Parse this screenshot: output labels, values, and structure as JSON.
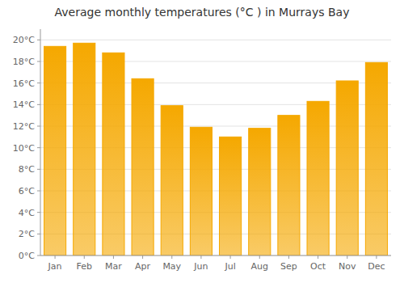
{
  "chart_data": {
    "type": "bar",
    "title": "Average monthly temperatures (°C ) in Murrays Bay",
    "categories": [
      "Jan",
      "Feb",
      "Mar",
      "Apr",
      "May",
      "Jun",
      "Jul",
      "Aug",
      "Sep",
      "Oct",
      "Nov",
      "Dec"
    ],
    "values": [
      19.4,
      19.7,
      18.8,
      16.4,
      13.9,
      11.9,
      11.0,
      11.8,
      13.0,
      14.3,
      16.2,
      17.9
    ],
    "color": "#F5A800",
    "ylim": [
      0,
      21
    ],
    "yticks": [
      {
        "value": 0,
        "label": "0°C"
      },
      {
        "value": 2,
        "label": "2°C"
      },
      {
        "value": 4,
        "label": "4°C"
      },
      {
        "value": 6,
        "label": "6°C"
      },
      {
        "value": 8,
        "label": "8°C"
      },
      {
        "value": 10,
        "label": "10°C"
      },
      {
        "value": 12,
        "label": "12°C"
      },
      {
        "value": 14,
        "label": "14°C"
      },
      {
        "value": 16,
        "label": "16°C"
      },
      {
        "value": 18,
        "label": "18°C"
      },
      {
        "value": 20,
        "label": "20°C"
      }
    ],
    "grid": true
  }
}
